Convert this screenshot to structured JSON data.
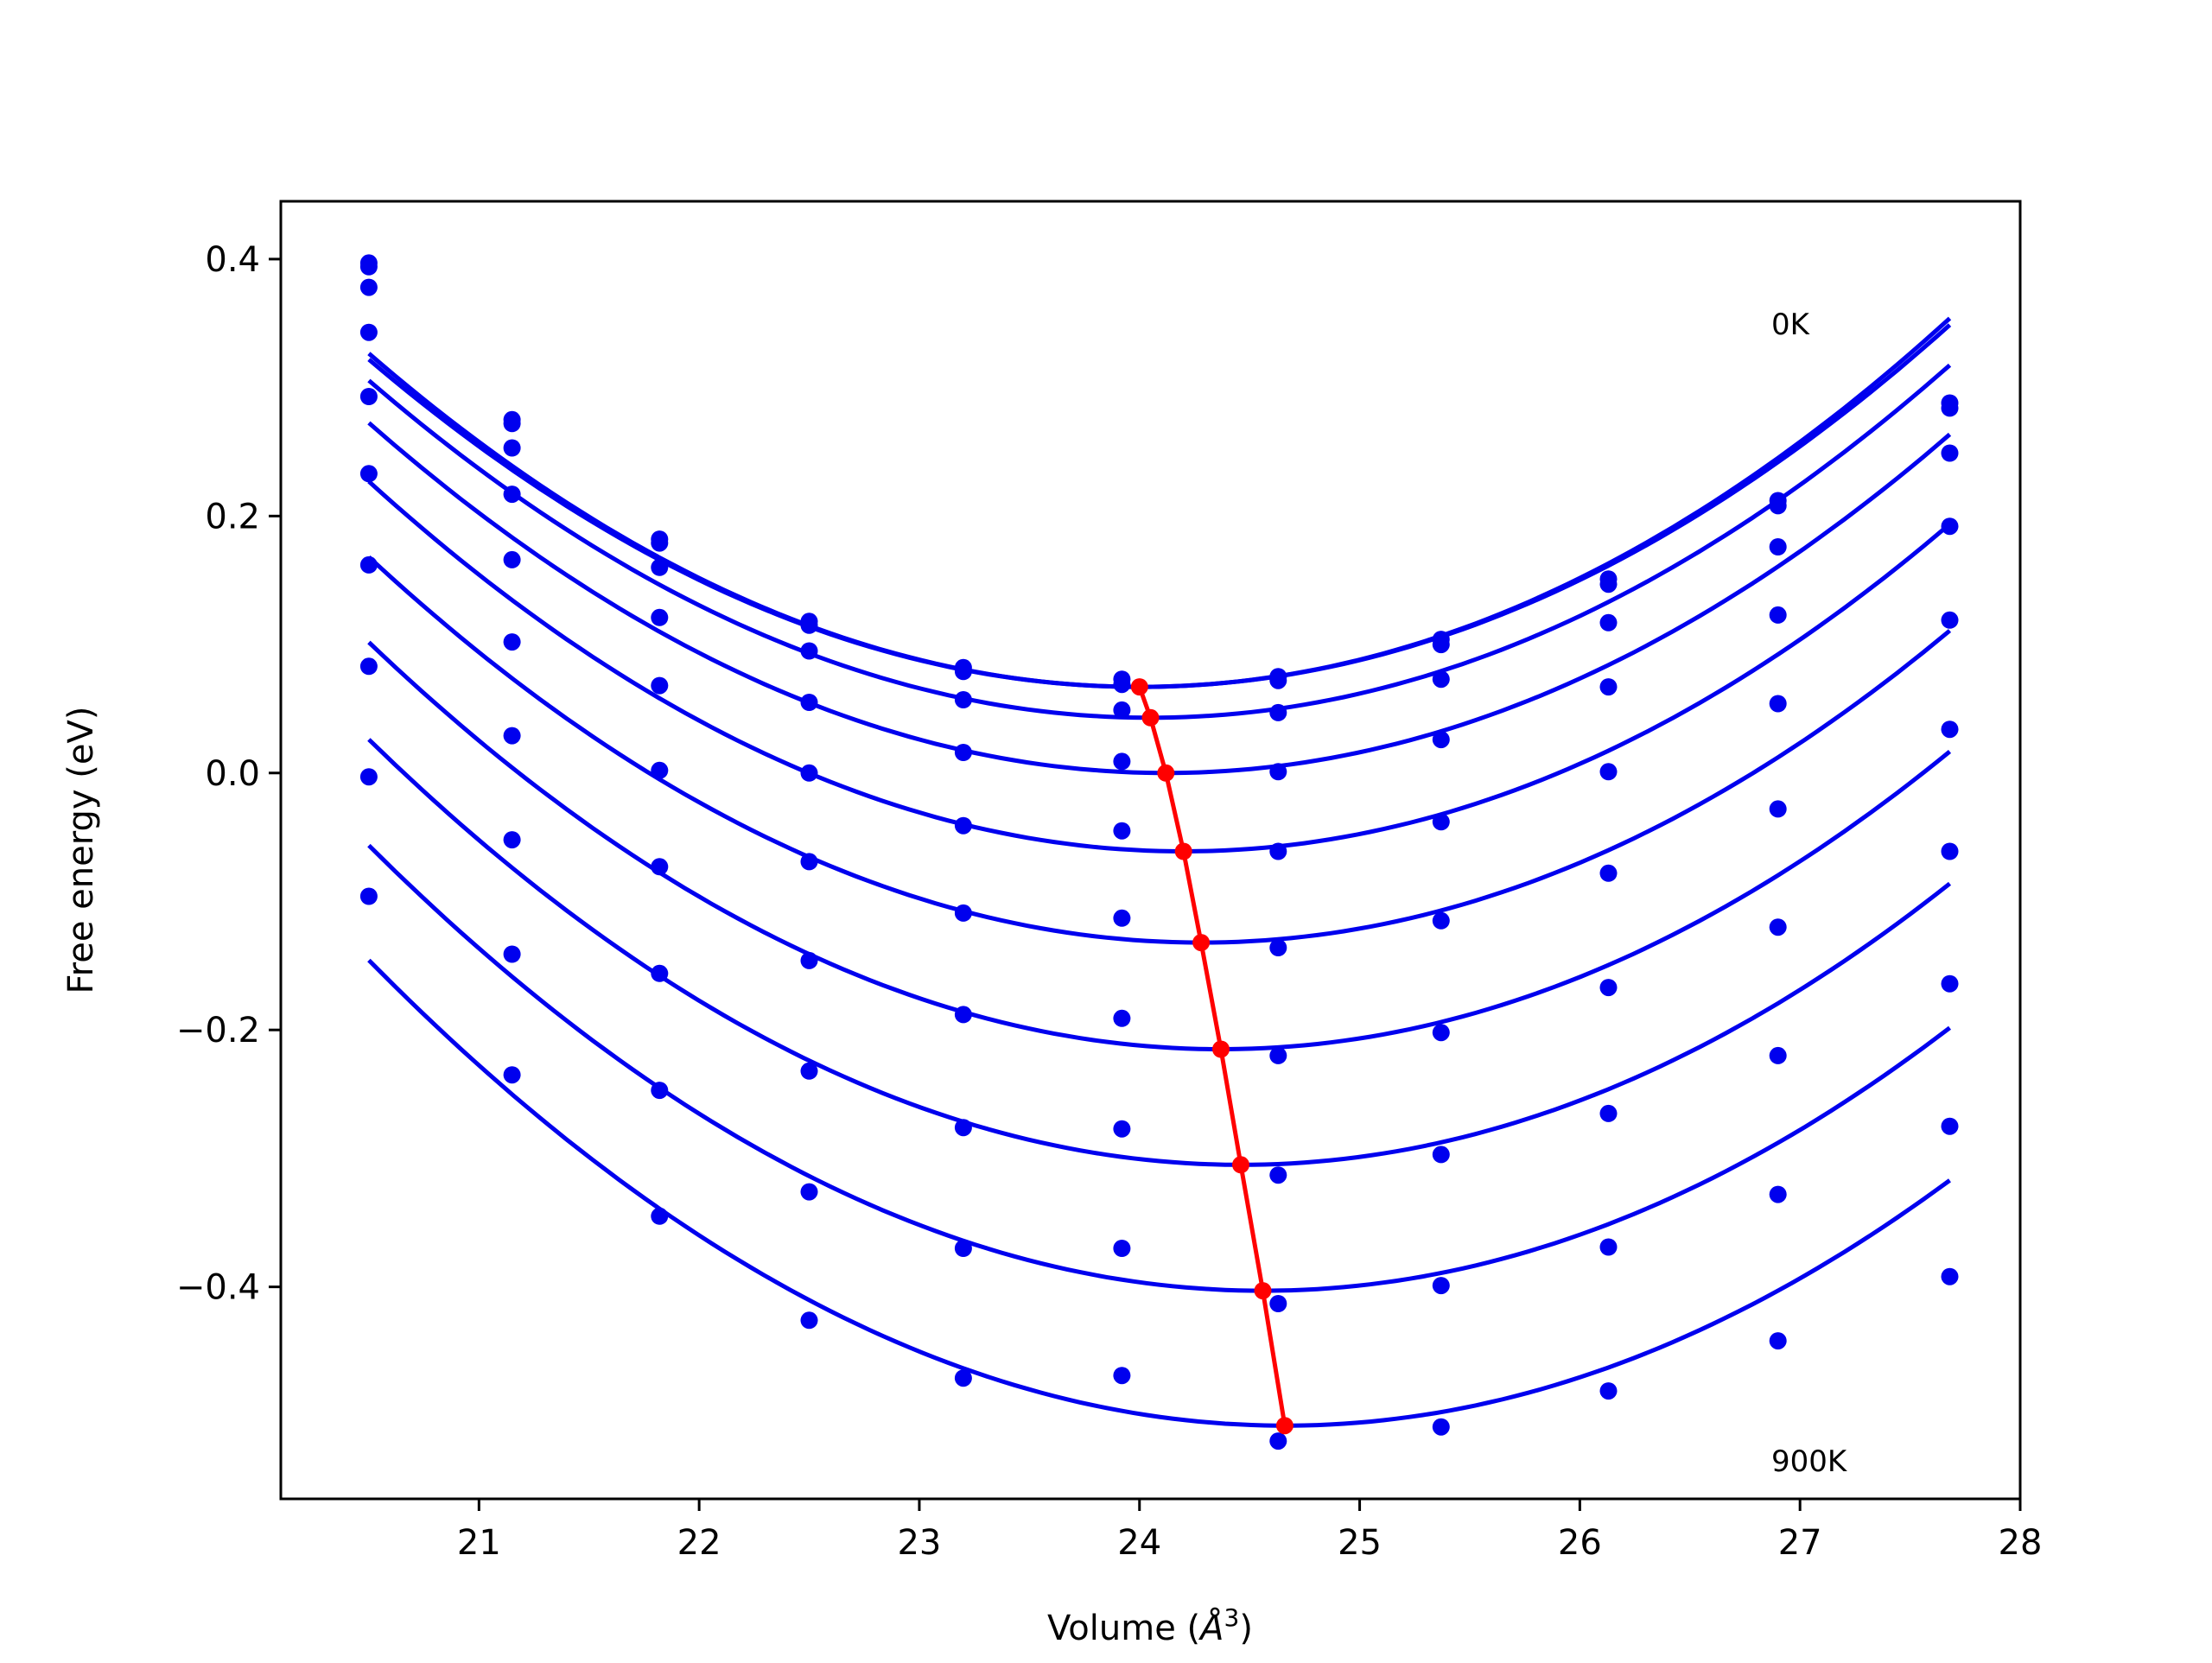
{
  "chart_data": {
    "type": "line",
    "title": "",
    "xlabel": "Volume (Å^3)",
    "xlabel_base": "Volume (",
    "xlabel_unit_base": "Å",
    "xlabel_unit_exp": "3",
    "xlabel_close": ")",
    "ylabel": "Free energy (eV)",
    "xlim": [
      20.1,
      28.0
    ],
    "ylim": [
      -0.565,
      0.445
    ],
    "xticks": [
      21,
      22,
      23,
      24,
      25,
      26,
      27,
      28
    ],
    "xtick_labels": [
      "21",
      "22",
      "23",
      "24",
      "25",
      "26",
      "27",
      "28"
    ],
    "yticks": [
      -0.4,
      -0.2,
      0.0,
      0.2,
      0.4
    ],
    "ytick_labels": [
      "−0.4",
      "−0.2",
      "0.0",
      "0.2",
      "0.4"
    ],
    "grid": false,
    "annotations": [
      "0K",
      "900K"
    ],
    "colors": {
      "fit": "#0000ee",
      "points": "#0000ee",
      "minimum": "#ff0000"
    },
    "x": [
      20.5,
      21.15,
      21.82,
      22.5,
      23.2,
      23.92,
      24.63,
      25.37,
      26.13,
      26.9,
      27.68
    ],
    "series": [
      {
        "values": [
          0.397,
          0.275,
          0.182,
          0.118,
          0.082,
          0.073,
          0.075,
          0.104,
          0.151,
          0.212,
          0.288
        ]
      },
      {
        "values": [
          0.394,
          0.272,
          0.179,
          0.115,
          0.079,
          0.069,
          0.072,
          0.1,
          0.147,
          0.208,
          0.284
        ]
      },
      {
        "values": [
          0.378,
          0.253,
          0.16,
          0.095,
          0.057,
          0.049,
          0.047,
          0.073,
          0.117,
          0.176,
          0.249
        ]
      },
      {
        "values": [
          0.343,
          0.217,
          0.121,
          0.055,
          0.016,
          0.009,
          0.001,
          0.026,
          0.067,
          0.123,
          0.192
        ]
      },
      {
        "values": [
          0.293,
          0.166,
          0.068,
          0.0,
          -0.041,
          -0.045,
          -0.061,
          -0.038,
          0.001,
          0.054,
          0.119
        ]
      },
      {
        "values": [
          0.233,
          0.102,
          0.002,
          -0.069,
          -0.109,
          -0.113,
          -0.136,
          -0.115,
          -0.078,
          -0.028,
          0.034
        ]
      },
      {
        "values": [
          0.162,
          0.029,
          -0.073,
          -0.146,
          -0.188,
          -0.191,
          -0.22,
          -0.202,
          -0.167,
          -0.12,
          -0.061
        ]
      },
      {
        "values": [
          0.083,
          -0.052,
          -0.156,
          -0.232,
          -0.276,
          -0.277,
          -0.313,
          -0.297,
          -0.265,
          -0.22,
          -0.164
        ]
      },
      {
        "values": [
          -0.003,
          -0.141,
          -0.247,
          -0.326,
          -0.37,
          -0.37,
          -0.413,
          -0.399,
          -0.369,
          -0.328,
          -0.275
        ]
      },
      {
        "values": [
          -0.096,
          -0.235,
          -0.345,
          -0.426,
          -0.471,
          -0.469,
          -0.52,
          -0.509,
          -0.481,
          -0.442,
          -0.392
        ]
      }
    ],
    "minimum_line": {
      "x": [
        24.0,
        24.05,
        24.12,
        24.2,
        24.28,
        24.37,
        24.46,
        24.56,
        24.66
      ],
      "y": [
        0.067,
        0.043,
        0.0,
        -0.061,
        -0.132,
        -0.215,
        -0.305,
        -0.403,
        -0.508
      ]
    },
    "fit_curves": [
      {
        "vmin": 24.0,
        "fmin": 0.067
      },
      {
        "vmin": 24.0,
        "fmin": 0.067
      },
      {
        "vmin": 24.05,
        "fmin": 0.043
      },
      {
        "vmin": 24.12,
        "fmin": 0.0
      },
      {
        "vmin": 24.2,
        "fmin": -0.061
      },
      {
        "vmin": 24.28,
        "fmin": -0.132
      },
      {
        "vmin": 24.37,
        "fmin": -0.215
      },
      {
        "vmin": 24.46,
        "fmin": -0.305
      },
      {
        "vmin": 24.56,
        "fmin": -0.403
      },
      {
        "vmin": 24.66,
        "fmin": -0.508
      }
    ]
  }
}
